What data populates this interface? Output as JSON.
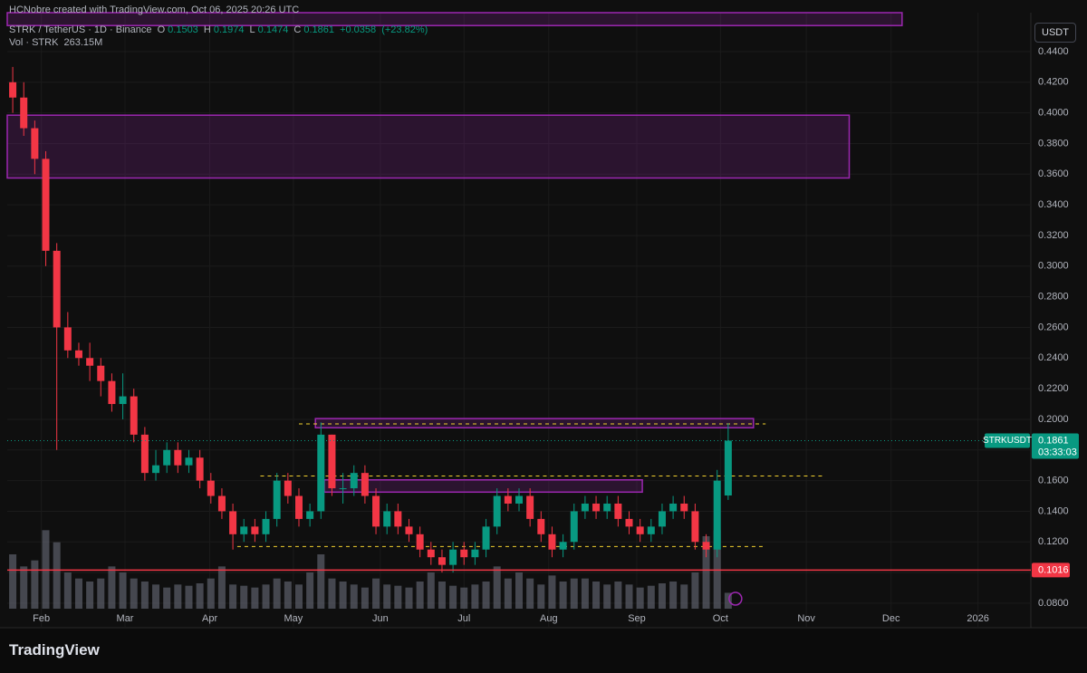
{
  "chart_data": {
    "type": "candlestick",
    "credit": "HCNobre created with TradingView.com, Oct 06, 2025 20:26 UTC",
    "title": "STRK / TetherUS · 1D · Binance",
    "ohlc_keys": [
      "O",
      "H",
      "L",
      "C"
    ],
    "change": "+0.0358",
    "change_pct": "(+23.82%)",
    "volume_title": "Vol · STRK",
    "volume_value_label": "263.15M",
    "currency": "USDT",
    "symbol": "STRKUSDT",
    "countdown": "03:33:03",
    "brand": "TradingView",
    "up_color": "#089981",
    "down_color": "#f23645",
    "volume_color": "#5d606b",
    "open": [
      0.42,
      0.41,
      0.39,
      0.37,
      0.31,
      0.26,
      0.245,
      0.24,
      0.235,
      0.225,
      0.21,
      0.215,
      0.19,
      0.165,
      0.17,
      0.18,
      0.17,
      0.175,
      0.16,
      0.15,
      0.14,
      0.125,
      0.13,
      0.125,
      0.135,
      0.16,
      0.15,
      0.135,
      0.14,
      0.19,
      0.155,
      0.155,
      0.165,
      0.15,
      0.13,
      0.14,
      0.13,
      0.125,
      0.115,
      0.11,
      0.105,
      0.115,
      0.11,
      0.115,
      0.13,
      0.15,
      0.145,
      0.15,
      0.135,
      0.125,
      0.115,
      0.12,
      0.14,
      0.145,
      0.14,
      0.145,
      0.135,
      0.13,
      0.125,
      0.13,
      0.14,
      0.145,
      0.14,
      0.12,
      0.115,
      0.1503
    ],
    "high": [
      0.43,
      0.42,
      0.395,
      0.375,
      0.315,
      0.27,
      0.25,
      0.25,
      0.24,
      0.23,
      0.23,
      0.22,
      0.195,
      0.18,
      0.185,
      0.185,
      0.18,
      0.18,
      0.165,
      0.155,
      0.145,
      0.135,
      0.135,
      0.14,
      0.165,
      0.165,
      0.155,
      0.145,
      0.198,
      0.19,
      0.165,
      0.17,
      0.17,
      0.155,
      0.145,
      0.145,
      0.135,
      0.13,
      0.12,
      0.115,
      0.12,
      0.12,
      0.12,
      0.135,
      0.155,
      0.155,
      0.155,
      0.155,
      0.14,
      0.13,
      0.125,
      0.145,
      0.15,
      0.15,
      0.15,
      0.15,
      0.14,
      0.135,
      0.135,
      0.145,
      0.15,
      0.15,
      0.145,
      0.125,
      0.167,
      0.1974
    ],
    "low": [
      0.4,
      0.385,
      0.36,
      0.3,
      0.18,
      0.24,
      0.235,
      0.225,
      0.215,
      0.205,
      0.2,
      0.185,
      0.16,
      0.16,
      0.165,
      0.165,
      0.165,
      0.155,
      0.145,
      0.135,
      0.115,
      0.12,
      0.12,
      0.12,
      0.13,
      0.145,
      0.13,
      0.13,
      0.135,
      0.15,
      0.145,
      0.15,
      0.145,
      0.125,
      0.125,
      0.125,
      0.12,
      0.11,
      0.105,
      0.1,
      0.1,
      0.105,
      0.105,
      0.11,
      0.125,
      0.14,
      0.14,
      0.13,
      0.12,
      0.11,
      0.11,
      0.115,
      0.135,
      0.135,
      0.135,
      0.13,
      0.125,
      0.12,
      0.12,
      0.125,
      0.135,
      0.135,
      0.115,
      0.11,
      0.11,
      0.1474
    ],
    "close": [
      0.41,
      0.39,
      0.37,
      0.31,
      0.26,
      0.245,
      0.24,
      0.235,
      0.225,
      0.21,
      0.215,
      0.19,
      0.165,
      0.17,
      0.18,
      0.17,
      0.175,
      0.16,
      0.15,
      0.14,
      0.125,
      0.13,
      0.125,
      0.135,
      0.16,
      0.15,
      0.135,
      0.14,
      0.19,
      0.155,
      0.155,
      0.165,
      0.15,
      0.13,
      0.14,
      0.13,
      0.125,
      0.115,
      0.11,
      0.105,
      0.115,
      0.11,
      0.115,
      0.13,
      0.15,
      0.145,
      0.15,
      0.135,
      0.125,
      0.115,
      0.12,
      0.14,
      0.145,
      0.14,
      0.145,
      0.135,
      0.13,
      0.125,
      0.13,
      0.14,
      0.145,
      0.14,
      0.12,
      0.115,
      0.16,
      0.1861
    ],
    "volume": [
      900,
      700,
      800,
      1300,
      1100,
      600,
      500,
      450,
      500,
      700,
      600,
      500,
      450,
      400,
      350,
      400,
      380,
      420,
      500,
      700,
      400,
      380,
      350,
      400,
      500,
      450,
      400,
      600,
      900,
      500,
      450,
      400,
      350,
      500,
      400,
      380,
      350,
      450,
      600,
      450,
      380,
      350,
      400,
      450,
      700,
      500,
      600,
      500,
      400,
      550,
      450,
      500,
      500,
      450,
      400,
      450,
      400,
      350,
      380,
      420,
      450,
      400,
      600,
      1200,
      1300,
      263.15
    ],
    "volume_lim": [
      0,
      1500
    ],
    "xlim": [
      -0.5,
      92.5
    ],
    "ylim": [
      0.064,
      0.4654
    ],
    "xticks": [
      {
        "value": 2.6,
        "label": "Feb"
      },
      {
        "value": 10.2,
        "label": "Mar"
      },
      {
        "value": 17.9,
        "label": "Apr"
      },
      {
        "value": 25.5,
        "label": "May"
      },
      {
        "value": 33.4,
        "label": "Jun"
      },
      {
        "value": 41.0,
        "label": "Jul"
      },
      {
        "value": 48.7,
        "label": "Aug"
      },
      {
        "value": 56.7,
        "label": "Sep"
      },
      {
        "value": 64.3,
        "label": "Oct"
      },
      {
        "value": 72.1,
        "label": "Nov"
      },
      {
        "value": 79.8,
        "label": "Dec"
      },
      {
        "value": 87.7,
        "label": "2026"
      }
    ],
    "yticks": [
      {
        "value": 0.08,
        "label": "0.0800"
      },
      {
        "value": 0.1,
        "label": "0.1000"
      },
      {
        "value": 0.12,
        "label": "0.1200"
      },
      {
        "value": 0.14,
        "label": "0.1400"
      },
      {
        "value": 0.16,
        "label": "0.1600"
      },
      {
        "value": 0.18,
        "label": "0.1800"
      },
      {
        "value": 0.2,
        "label": "0.2000"
      },
      {
        "value": 0.22,
        "label": "0.2200"
      },
      {
        "value": 0.24,
        "label": "0.2400"
      },
      {
        "value": 0.26,
        "label": "0.2600"
      },
      {
        "value": 0.28,
        "label": "0.2800"
      },
      {
        "value": 0.3,
        "label": "0.3000"
      },
      {
        "value": 0.32,
        "label": "0.3200"
      },
      {
        "value": 0.34,
        "label": "0.3400"
      },
      {
        "value": 0.36,
        "label": "0.3600"
      },
      {
        "value": 0.38,
        "label": "0.3800"
      },
      {
        "value": 0.4,
        "label": "0.4000"
      },
      {
        "value": 0.42,
        "label": "0.4200"
      },
      {
        "value": 0.44,
        "label": "0.4400"
      }
    ],
    "grid": true,
    "zones": [
      {
        "x0": -0.5,
        "x1": 80.8,
        "top": 0.4654,
        "bottom": 0.457,
        "color": "#9c27b0"
      },
      {
        "x0": -0.5,
        "x1": 76,
        "top": 0.3985,
        "bottom": 0.3575,
        "color": "#9c27b0"
      },
      {
        "x0": 27.5,
        "x1": 67.3,
        "top": 0.2005,
        "bottom": 0.1945,
        "color": "#9c27b0"
      },
      {
        "x0": 28.3,
        "x1": 57.2,
        "top": 0.1605,
        "bottom": 0.1525,
        "color": "#9c27b0"
      }
    ],
    "levels": [
      {
        "value": 0.197,
        "x0": 26,
        "x1": 68.4,
        "color": "#f2d12e"
      },
      {
        "value": 0.163,
        "x0": 22.5,
        "x1": 73.7,
        "color": "#f2d12e"
      },
      {
        "value": 0.117,
        "x0": 20.4,
        "x1": 68.2,
        "color": "#f2d12e"
      }
    ],
    "support": {
      "value": 0.1016,
      "color": "#f23645"
    }
  }
}
